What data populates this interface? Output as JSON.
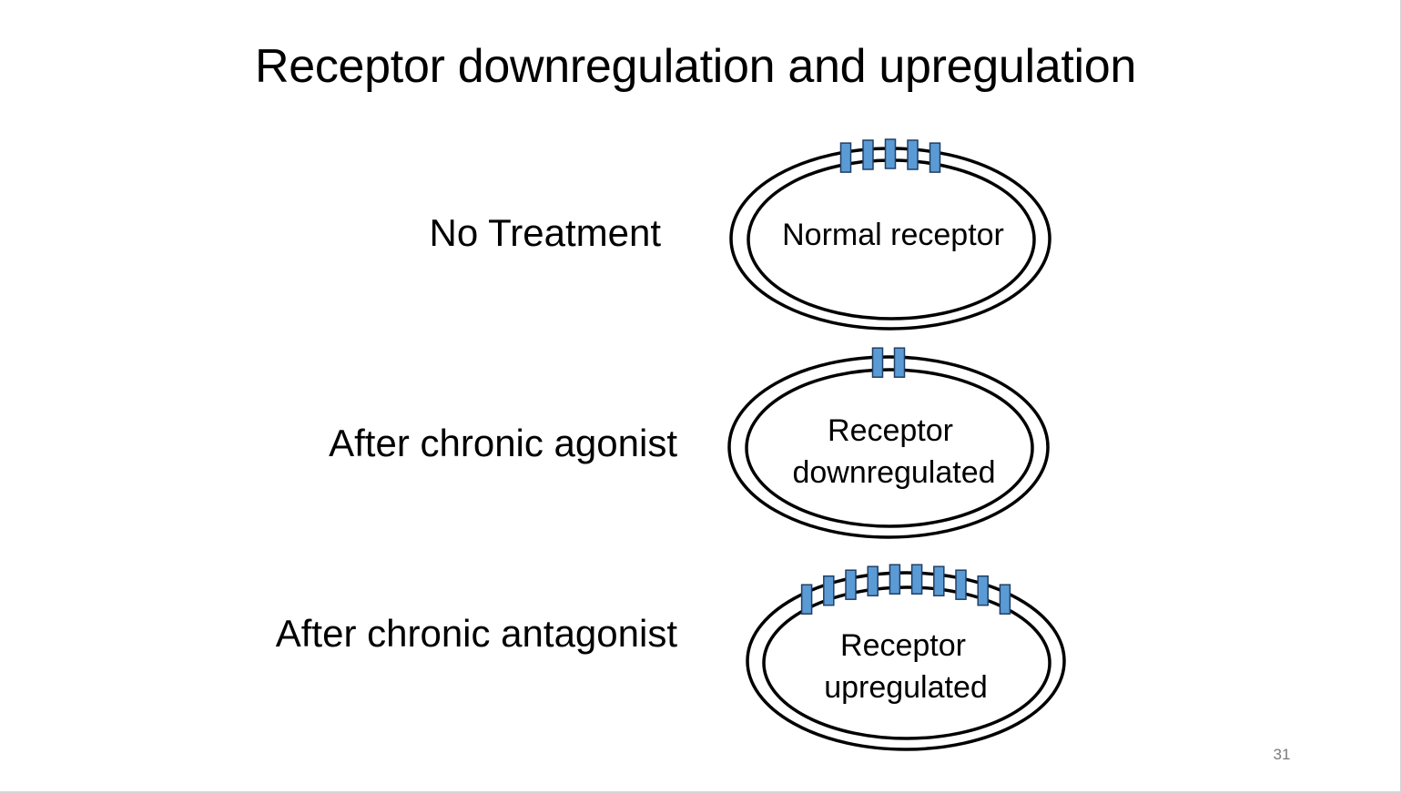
{
  "slide": {
    "title": "Receptor downregulation and upregulation",
    "page_number": "31",
    "colors": {
      "receptor_fill": "#5b9bd5",
      "receptor_stroke": "#1f3f66",
      "membrane": "#000000"
    },
    "rows": [
      {
        "label": "No Treatment",
        "cell_lines": [
          "Normal receptor"
        ],
        "receptor_count": 5
      },
      {
        "label": "After chronic agonist",
        "cell_lines": [
          "Receptor",
          "downregulated"
        ],
        "receptor_count": 2
      },
      {
        "label": "After chronic antagonist",
        "cell_lines": [
          "Receptor",
          "upregulated"
        ],
        "receptor_count": 10
      }
    ]
  }
}
